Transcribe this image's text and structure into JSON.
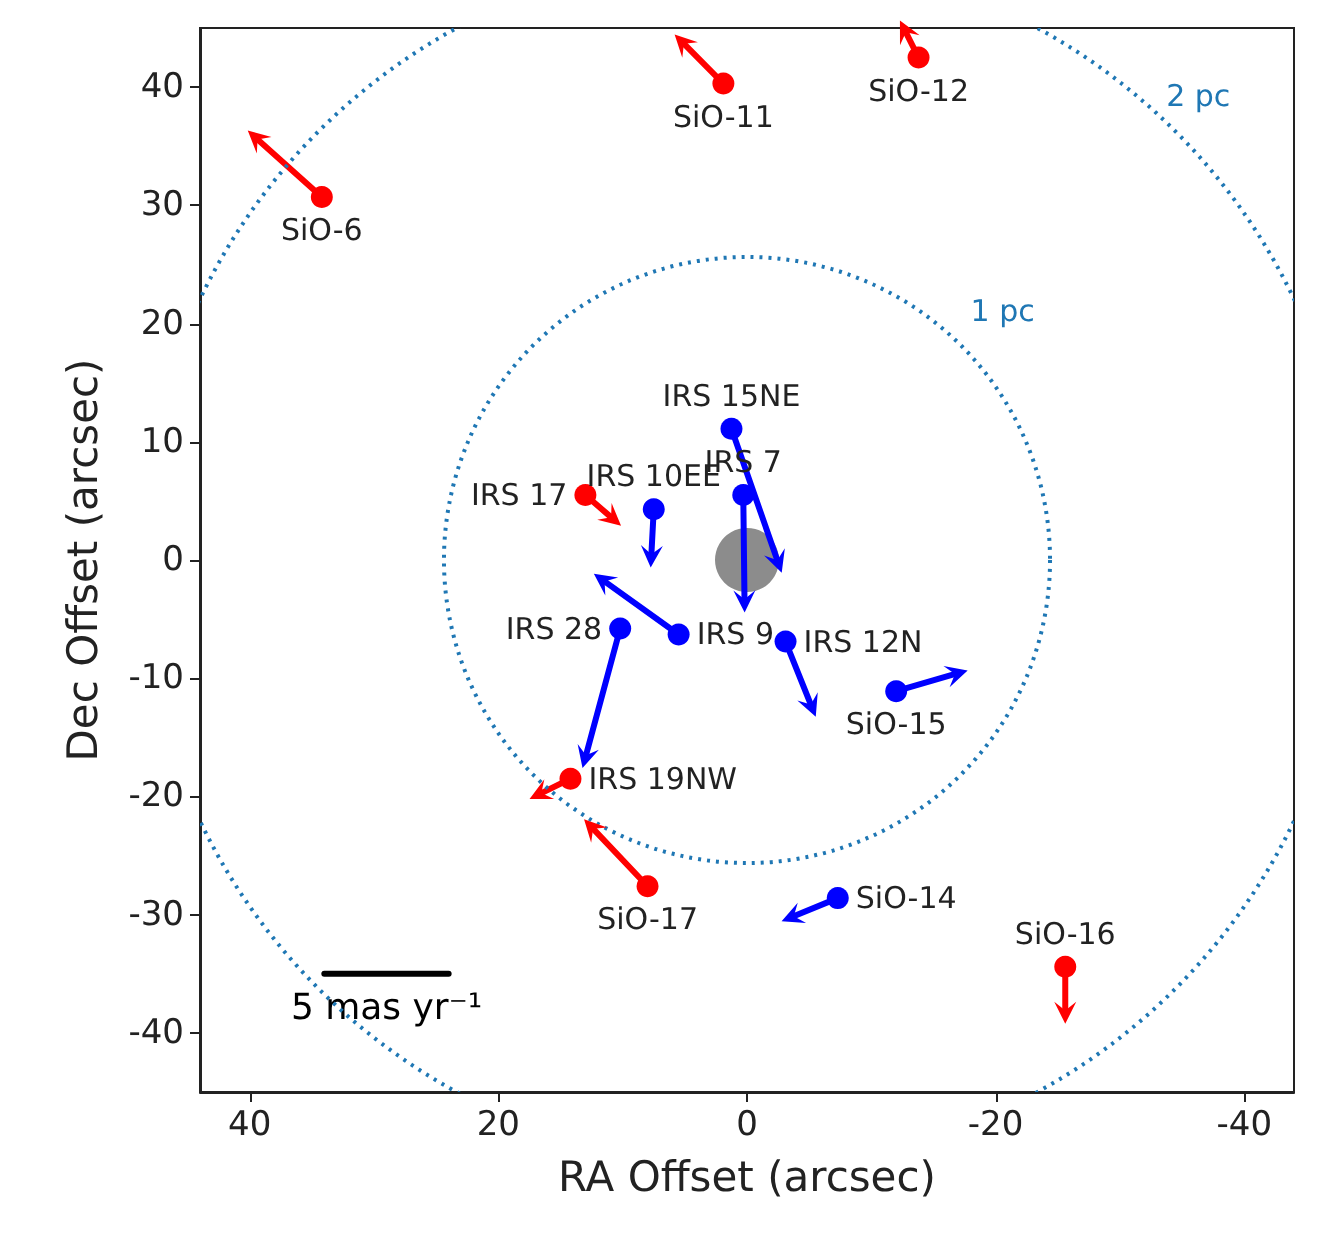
{
  "chart_data": {
    "type": "line",
    "xlabel": "RA Offset (arcsec)",
    "ylabel": "Dec Offset (arcsec)",
    "xlim": [
      44,
      -44
    ],
    "xticks": [
      40,
      20,
      0,
      -20,
      -40
    ],
    "ylim": [
      -45,
      45
    ],
    "yticks": [
      -40,
      -30,
      -20,
      -10,
      0,
      10,
      20,
      30,
      40
    ],
    "marker": "circle",
    "line_style": "solid",
    "annotations": [
      "1 pc",
      "2 pc",
      {
        "text": "SiO-6",
        "x": 34.2,
        "y": 30.7
      },
      {
        "text": "SiO-11",
        "x": 1.9,
        "y": 40.3
      },
      {
        "text": "SiO-12",
        "x": -13.8,
        "y": 42.5
      },
      {
        "text": "IRS 15NE",
        "x": 1.25,
        "y": 11.1
      },
      {
        "text": "IRS 7",
        "x": 0.3,
        "y": 5.5
      },
      {
        "text": "IRS 10EE",
        "x": 7.5,
        "y": 4.3
      },
      {
        "text": "IRS 17",
        "x": 13.0,
        "y": 5.5
      },
      {
        "text": "IRS 9",
        "x": 5.5,
        "y": -6.3
      },
      {
        "text": "IRS 28",
        "x": 10.2,
        "y": -5.8
      },
      {
        "text": "IRS 12N",
        "x": -3.1,
        "y": -6.9
      },
      {
        "text": "SiO-15",
        "x": -12.0,
        "y": -11.1
      },
      {
        "text": "IRS 19NW",
        "x": 14.2,
        "y": -18.5
      },
      {
        "text": "SiO-17",
        "x": 8.0,
        "y": -27.6
      },
      {
        "text": "SiO-14",
        "x": -7.3,
        "y": -28.6
      },
      {
        "text": "SiO-16",
        "x": -25.6,
        "y": -34.4
      }
    ],
    "series": [
      {
        "type": "scatter",
        "color": "#808080",
        "x": [
          0
        ],
        "values": [
          0
        ]
      },
      {
        "name": "5 mas yr⁻¹",
        "type": "line",
        "marker": "none",
        "color": "#000000",
        "x": [
          34,
          24
        ],
        "values": [
          -35,
          -35
        ]
      },
      {
        "color": "#ff0000",
        "x": [
          34.2,
          39.5
        ],
        "values": [
          30.7,
          35.7
        ]
      },
      {
        "color": "#ff0000",
        "x": [
          1.9,
          5.2
        ],
        "values": [
          40.3,
          43.8
        ]
      },
      {
        "color": "#ff0000",
        "x": [
          -13.8,
          -12.7
        ],
        "values": [
          42.5,
          44.8
        ]
      },
      {
        "color": "#0000ff",
        "x": [
          1.25,
          -2.5
        ],
        "values": [
          11.1,
          -0.2
        ]
      },
      {
        "color": "#0000ff",
        "x": [
          0.3,
          0.2
        ],
        "values": [
          5.5,
          -3.5
        ]
      },
      {
        "color": "#0000ff",
        "x": [
          7.5,
          7.7
        ],
        "values": [
          4.3,
          0.3
        ]
      },
      {
        "color": "#ff0000",
        "x": [
          13.0,
          10.8
        ],
        "values": [
          5.5,
          3.5
        ]
      },
      {
        "color": "#0000ff",
        "x": [
          5.5,
          11.6
        ],
        "values": [
          -6.3,
          -1.7
        ]
      },
      {
        "color": "#0000ff",
        "x": [
          10.2,
          13.0
        ],
        "values": [
          -5.8,
          -16.7
        ]
      },
      {
        "color": "#0000ff",
        "x": [
          -3.1,
          -5.2
        ],
        "values": [
          -6.9,
          -12.4
        ]
      },
      {
        "color": "#0000ff",
        "x": [
          -12.0,
          -16.9
        ],
        "values": [
          -11.1,
          -9.6
        ]
      },
      {
        "color": "#ff0000",
        "x": [
          14.2,
          16.7
        ],
        "values": [
          -18.5,
          -19.8
        ]
      },
      {
        "color": "#ff0000",
        "x": [
          8.0,
          12.5
        ],
        "values": [
          -27.6,
          -22.6
        ]
      },
      {
        "color": "#0000ff",
        "x": [
          -7.3,
          -3.6
        ],
        "values": [
          -28.6,
          -30.2
        ]
      },
      {
        "color": "#ff0000",
        "x": [
          -25.6,
          -25.6
        ],
        "values": [
          -34.4,
          -38.3
        ]
      }
    ]
  }
}
